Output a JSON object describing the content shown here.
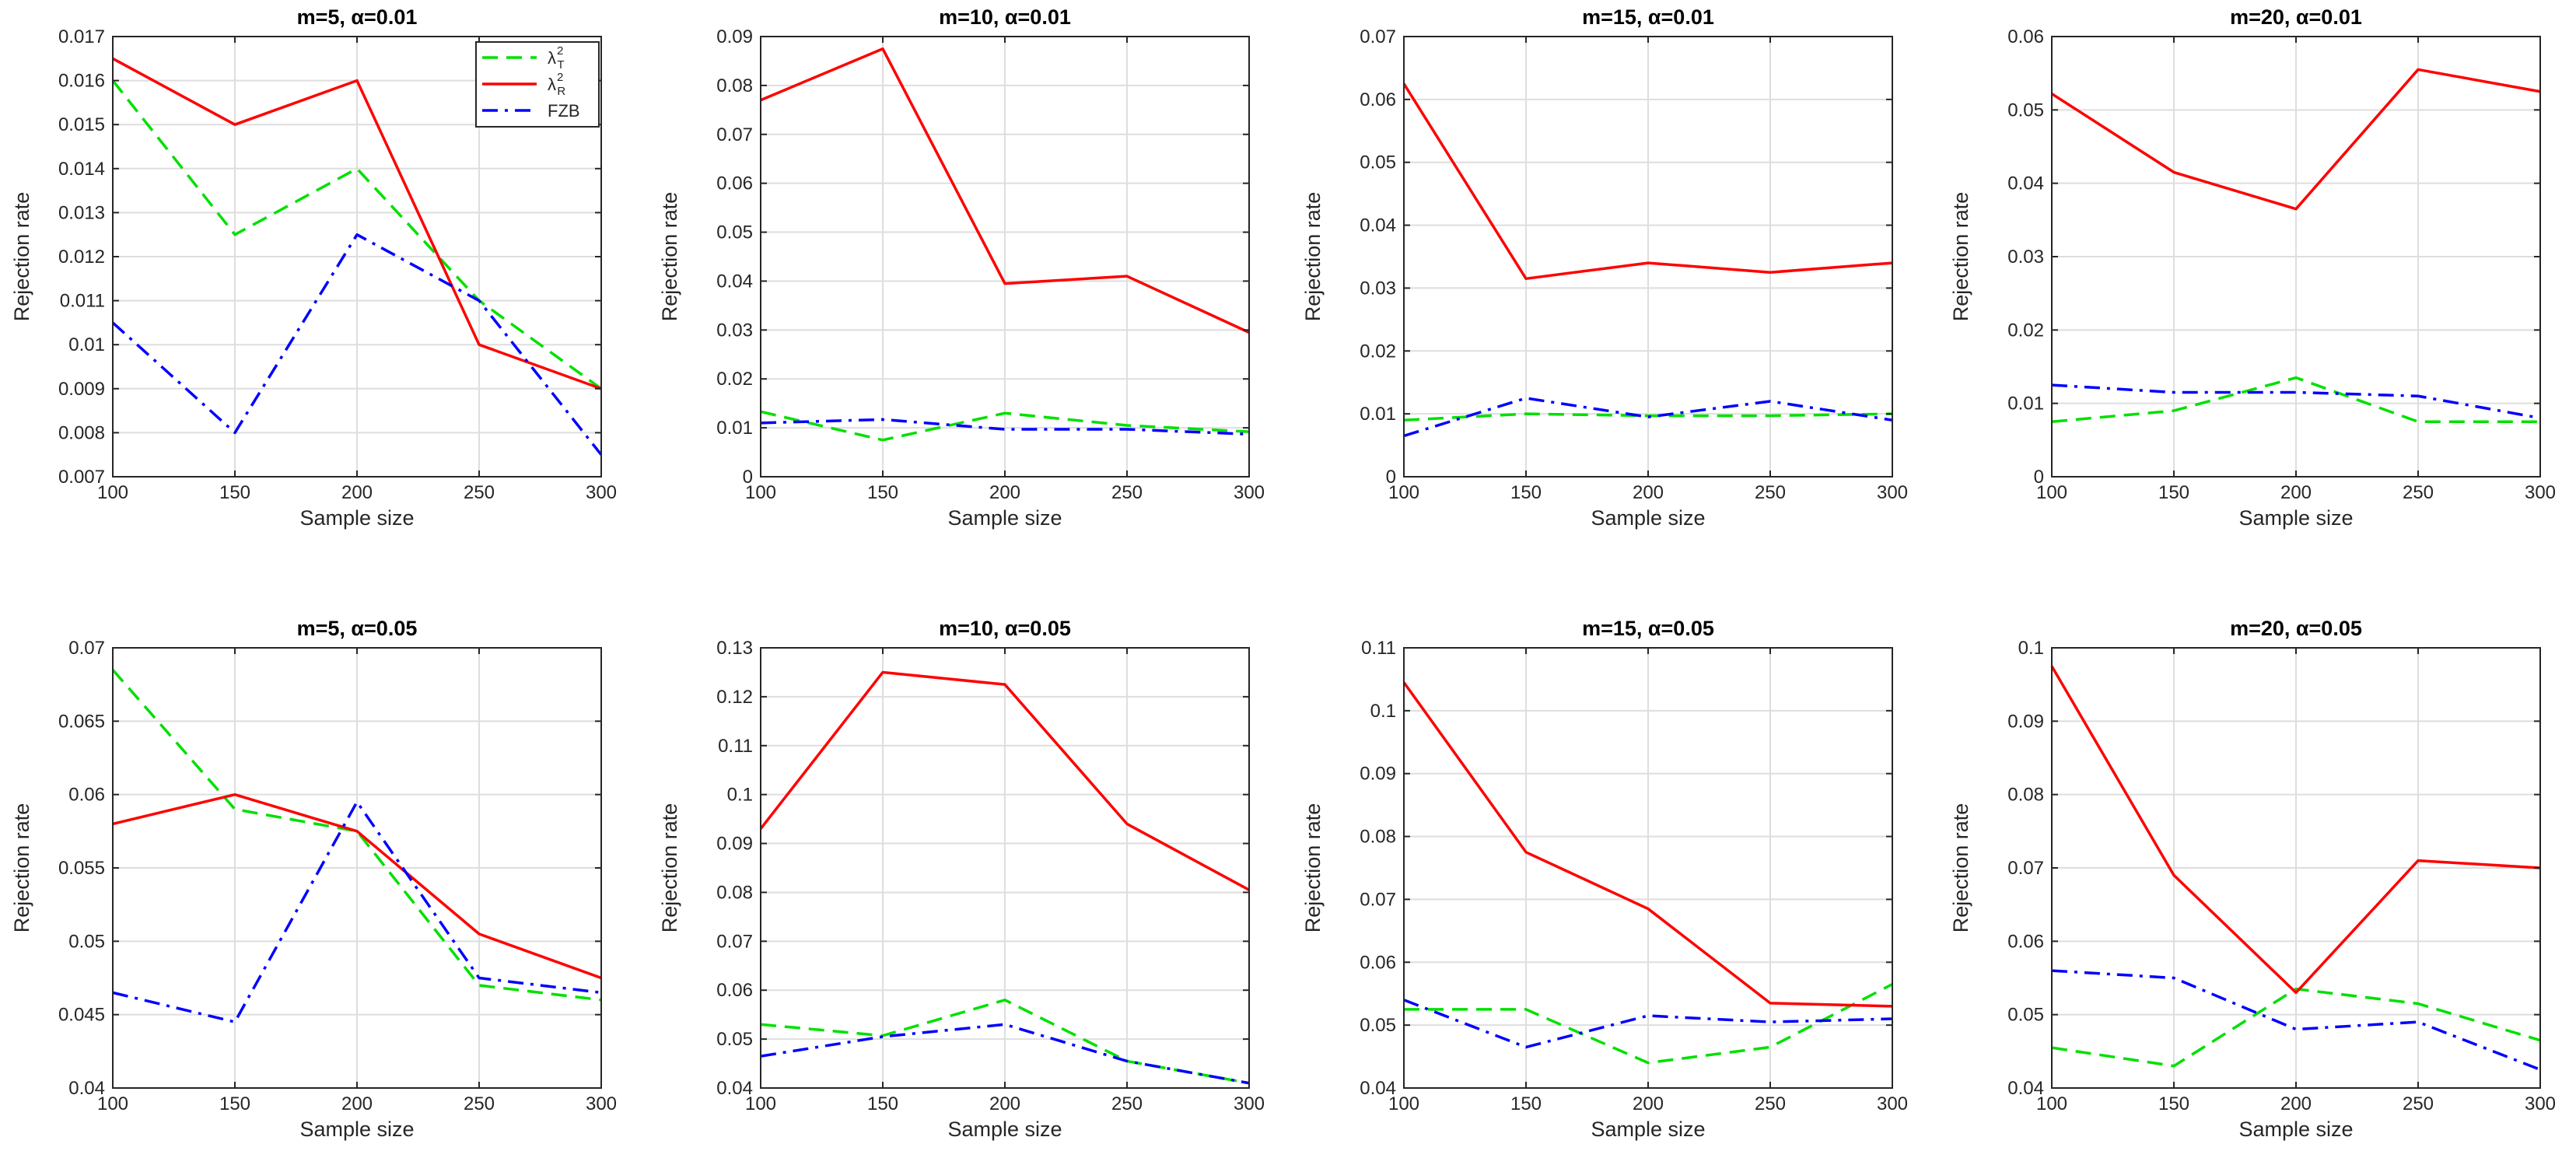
{
  "colors": {
    "chi2_T": "#00e000",
    "chi2_R": "#ff0000",
    "FZB": "#0000ff",
    "grid": "#dedede",
    "axes": "#262626"
  },
  "legend": {
    "entries": [
      {
        "key": "chi2_T",
        "symbol": "λ",
        "sup": "2",
        "sub": "T"
      },
      {
        "key": "chi2_R",
        "symbol": "λ",
        "sup": "2",
        "sub": "R"
      },
      {
        "key": "FZB",
        "symbol": "FZB",
        "sup": "",
        "sub": ""
      }
    ]
  },
  "chart_data": [
    {
      "type": "line",
      "title": "m=5, α=0.01",
      "xlabel": "Sample size",
      "ylabel": "Rejection rate",
      "x": [
        100,
        150,
        200,
        250,
        300
      ],
      "xticks": [
        "100",
        "150",
        "200",
        "250",
        "300"
      ],
      "ylim": [
        0.007,
        0.017
      ],
      "yticks": [
        "0.007",
        "0.008",
        "0.009",
        "0.01",
        "0.011",
        "0.012",
        "0.013",
        "0.014",
        "0.015",
        "0.016",
        "0.017"
      ],
      "grid": true,
      "legend": "top-right",
      "series": [
        {
          "key": "chi2_T",
          "values": [
            0.016,
            0.0125,
            0.014,
            0.011,
            0.009
          ]
        },
        {
          "key": "chi2_R",
          "values": [
            0.0165,
            0.015,
            0.016,
            0.01,
            0.009
          ]
        },
        {
          "key": "FZB",
          "values": [
            0.0105,
            0.008,
            0.0125,
            0.011,
            0.0075
          ]
        }
      ]
    },
    {
      "type": "line",
      "title": "m=10, α=0.01",
      "xlabel": "Sample size",
      "ylabel": "Rejection rate",
      "x": [
        100,
        150,
        200,
        250,
        300
      ],
      "xticks": [
        "100",
        "150",
        "200",
        "250",
        "300"
      ],
      "ylim": [
        0,
        0.09
      ],
      "yticks": [
        "0",
        "0.01",
        "0.02",
        "0.03",
        "0.04",
        "0.05",
        "0.06",
        "0.07",
        "0.08",
        "0.09"
      ],
      "grid": true,
      "series": [
        {
          "key": "chi2_T",
          "values": [
            0.0133,
            0.0075,
            0.013,
            0.0105,
            0.0092
          ]
        },
        {
          "key": "chi2_R",
          "values": [
            0.077,
            0.0875,
            0.0395,
            0.041,
            0.0295
          ]
        },
        {
          "key": "FZB",
          "values": [
            0.011,
            0.0117,
            0.0097,
            0.0097,
            0.0087
          ]
        }
      ]
    },
    {
      "type": "line",
      "title": "m=15, α=0.01",
      "xlabel": "Sample size",
      "ylabel": "Rejection rate",
      "x": [
        100,
        150,
        200,
        250,
        300
      ],
      "xticks": [
        "100",
        "150",
        "200",
        "250",
        "300"
      ],
      "ylim": [
        0,
        0.07
      ],
      "yticks": [
        "0",
        "0.01",
        "0.02",
        "0.03",
        "0.04",
        "0.05",
        "0.06",
        "0.07"
      ],
      "grid": true,
      "series": [
        {
          "key": "chi2_T",
          "values": [
            0.009,
            0.01,
            0.0097,
            0.0097,
            0.01
          ]
        },
        {
          "key": "chi2_R",
          "values": [
            0.0625,
            0.0315,
            0.034,
            0.0325,
            0.034
          ]
        },
        {
          "key": "FZB",
          "values": [
            0.0065,
            0.0125,
            0.0095,
            0.012,
            0.009
          ]
        }
      ]
    },
    {
      "type": "line",
      "title": "m=20, α=0.01",
      "xlabel": "Sample size",
      "ylabel": "Rejection rate",
      "x": [
        100,
        150,
        200,
        250,
        300
      ],
      "xticks": [
        "100",
        "150",
        "200",
        "250",
        "300"
      ],
      "ylim": [
        0,
        0.06
      ],
      "yticks": [
        "0",
        "0.01",
        "0.02",
        "0.03",
        "0.04",
        "0.05",
        "0.06"
      ],
      "grid": true,
      "series": [
        {
          "key": "chi2_T",
          "values": [
            0.0075,
            0.009,
            0.0135,
            0.0075,
            0.0075
          ]
        },
        {
          "key": "chi2_R",
          "values": [
            0.0522,
            0.0415,
            0.0365,
            0.0555,
            0.0525
          ]
        },
        {
          "key": "FZB",
          "values": [
            0.0125,
            0.0115,
            0.0115,
            0.011,
            0.008
          ]
        }
      ]
    },
    {
      "type": "line",
      "title": "m=5, α=0.05",
      "xlabel": "Sample size",
      "ylabel": "Rejection rate",
      "x": [
        100,
        150,
        200,
        250,
        300
      ],
      "xticks": [
        "100",
        "150",
        "200",
        "250",
        "300"
      ],
      "ylim": [
        0.04,
        0.07
      ],
      "yticks": [
        "0.04",
        "0.045",
        "0.05",
        "0.055",
        "0.06",
        "0.065",
        "0.07"
      ],
      "grid": true,
      "series": [
        {
          "key": "chi2_T",
          "values": [
            0.0685,
            0.059,
            0.0575,
            0.047,
            0.046
          ]
        },
        {
          "key": "chi2_R",
          "values": [
            0.058,
            0.06,
            0.0575,
            0.0505,
            0.0475
          ]
        },
        {
          "key": "FZB",
          "values": [
            0.0465,
            0.0445,
            0.0595,
            0.0475,
            0.0465
          ]
        }
      ]
    },
    {
      "type": "line",
      "title": "m=10, α=0.05",
      "xlabel": "Sample size",
      "ylabel": "Rejection rate",
      "x": [
        100,
        150,
        200,
        250,
        300
      ],
      "xticks": [
        "100",
        "150",
        "200",
        "250",
        "300"
      ],
      "ylim": [
        0.04,
        0.13
      ],
      "yticks": [
        "0.04",
        "0.05",
        "0.06",
        "0.07",
        "0.08",
        "0.09",
        "0.1",
        "0.11",
        "0.12",
        "0.13"
      ],
      "grid": true,
      "series": [
        {
          "key": "chi2_T",
          "values": [
            0.053,
            0.0507,
            0.058,
            0.0455,
            0.041
          ]
        },
        {
          "key": "chi2_R",
          "values": [
            0.093,
            0.125,
            0.1225,
            0.094,
            0.0805
          ]
        },
        {
          "key": "FZB",
          "values": [
            0.0465,
            0.0505,
            0.053,
            0.0455,
            0.041
          ]
        }
      ]
    },
    {
      "type": "line",
      "title": "m=15, α=0.05",
      "xlabel": "Sample size",
      "ylabel": "Rejection rate",
      "x": [
        100,
        150,
        200,
        250,
        300
      ],
      "xticks": [
        "100",
        "150",
        "200",
        "250",
        "300"
      ],
      "ylim": [
        0.04,
        0.11
      ],
      "yticks": [
        "0.04",
        "0.05",
        "0.06",
        "0.07",
        "0.08",
        "0.09",
        "0.1",
        "0.11"
      ],
      "grid": true,
      "series": [
        {
          "key": "chi2_T",
          "values": [
            0.0525,
            0.0525,
            0.044,
            0.0465,
            0.0565
          ]
        },
        {
          "key": "chi2_R",
          "values": [
            0.1045,
            0.0775,
            0.0685,
            0.0535,
            0.053
          ]
        },
        {
          "key": "FZB",
          "values": [
            0.054,
            0.0465,
            0.0515,
            0.0505,
            0.051
          ]
        }
      ]
    },
    {
      "type": "line",
      "title": "m=20, α=0.05",
      "xlabel": "Sample size",
      "ylabel": "Rejection rate",
      "x": [
        100,
        150,
        200,
        250,
        300
      ],
      "xticks": [
        "100",
        "150",
        "200",
        "250",
        "300"
      ],
      "ylim": [
        0.04,
        0.1
      ],
      "yticks": [
        "0.04",
        "0.05",
        "0.06",
        "0.07",
        "0.08",
        "0.09",
        "0.1"
      ],
      "grid": true,
      "series": [
        {
          "key": "chi2_T",
          "values": [
            0.0455,
            0.043,
            0.0535,
            0.0515,
            0.0465
          ]
        },
        {
          "key": "chi2_R",
          "values": [
            0.0975,
            0.069,
            0.053,
            0.071,
            0.07
          ]
        },
        {
          "key": "FZB",
          "values": [
            0.056,
            0.055,
            0.048,
            0.049,
            0.0425
          ]
        }
      ]
    }
  ]
}
